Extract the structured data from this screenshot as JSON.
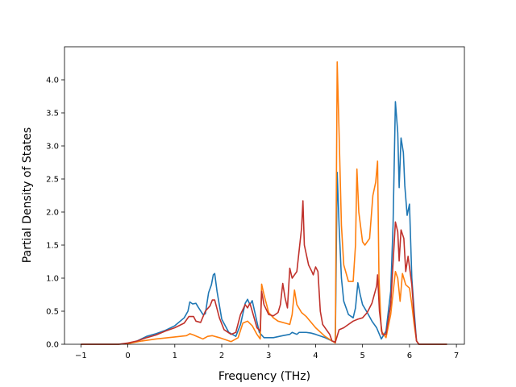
{
  "chart_data": {
    "type": "line",
    "title": "",
    "xlabel": "Frequency (THz)",
    "ylabel": "Partial Density of States",
    "xlim": [
      -1.35,
      7.17
    ],
    "ylim": [
      0.0,
      4.5
    ],
    "xticks": [
      -1,
      0,
      1,
      2,
      3,
      4,
      5,
      6,
      7
    ],
    "xtick_labels": [
      "−1",
      "0",
      "1",
      "2",
      "3",
      "4",
      "5",
      "6",
      "7"
    ],
    "yticks": [
      0.0,
      0.5,
      1.0,
      1.5,
      2.0,
      2.5,
      3.0,
      3.5,
      4.0
    ],
    "ytick_labels": [
      "0.0",
      "0.5",
      "1.0",
      "1.5",
      "2.0",
      "2.5",
      "3.0",
      "3.5",
      "4.0"
    ],
    "grid": false,
    "legend": "none",
    "series": [
      {
        "color": "#1f77b4",
        "points": [
          [
            -1.0,
            0.0
          ],
          [
            -0.2,
            0.0
          ],
          [
            0.0,
            0.01
          ],
          [
            0.2,
            0.05
          ],
          [
            0.4,
            0.12
          ],
          [
            0.6,
            0.16
          ],
          [
            0.8,
            0.21
          ],
          [
            1.0,
            0.28
          ],
          [
            1.2,
            0.4
          ],
          [
            1.28,
            0.5
          ],
          [
            1.32,
            0.64
          ],
          [
            1.38,
            0.61
          ],
          [
            1.45,
            0.62
          ],
          [
            1.5,
            0.56
          ],
          [
            1.6,
            0.45
          ],
          [
            1.65,
            0.46
          ],
          [
            1.72,
            0.78
          ],
          [
            1.78,
            0.9
          ],
          [
            1.82,
            1.05
          ],
          [
            1.85,
            1.07
          ],
          [
            1.9,
            0.8
          ],
          [
            2.0,
            0.38
          ],
          [
            2.15,
            0.18
          ],
          [
            2.3,
            0.12
          ],
          [
            2.4,
            0.3
          ],
          [
            2.5,
            0.62
          ],
          [
            2.55,
            0.68
          ],
          [
            2.6,
            0.6
          ],
          [
            2.65,
            0.66
          ],
          [
            2.7,
            0.5
          ],
          [
            2.8,
            0.18
          ],
          [
            2.9,
            0.1
          ],
          [
            3.1,
            0.1
          ],
          [
            3.3,
            0.13
          ],
          [
            3.45,
            0.15
          ],
          [
            3.5,
            0.18
          ],
          [
            3.6,
            0.15
          ],
          [
            3.65,
            0.18
          ],
          [
            3.8,
            0.18
          ],
          [
            3.9,
            0.17
          ],
          [
            4.0,
            0.15
          ],
          [
            4.2,
            0.1
          ],
          [
            4.35,
            0.05
          ],
          [
            4.42,
            0.03
          ],
          [
            4.46,
            2.6
          ],
          [
            4.5,
            1.8
          ],
          [
            4.55,
            1.0
          ],
          [
            4.6,
            0.65
          ],
          [
            4.7,
            0.45
          ],
          [
            4.8,
            0.4
          ],
          [
            4.85,
            0.55
          ],
          [
            4.9,
            0.93
          ],
          [
            4.95,
            0.75
          ],
          [
            5.0,
            0.6
          ],
          [
            5.1,
            0.48
          ],
          [
            5.2,
            0.35
          ],
          [
            5.3,
            0.25
          ],
          [
            5.4,
            0.08
          ],
          [
            5.5,
            0.2
          ],
          [
            5.6,
            0.8
          ],
          [
            5.65,
            1.8
          ],
          [
            5.7,
            3.67
          ],
          [
            5.75,
            3.2
          ],
          [
            5.78,
            2.37
          ],
          [
            5.82,
            3.12
          ],
          [
            5.87,
            2.9
          ],
          [
            5.9,
            2.4
          ],
          [
            5.95,
            1.95
          ],
          [
            6.0,
            2.12
          ],
          [
            6.05,
            1.0
          ],
          [
            6.1,
            0.5
          ],
          [
            6.15,
            0.05
          ],
          [
            6.2,
            0.0
          ],
          [
            6.8,
            0.0
          ]
        ]
      },
      {
        "color": "#ff7f0e",
        "points": [
          [
            -1.0,
            0.0
          ],
          [
            -0.2,
            0.0
          ],
          [
            0.0,
            0.01
          ],
          [
            0.3,
            0.05
          ],
          [
            0.6,
            0.08
          ],
          [
            1.0,
            0.11
          ],
          [
            1.25,
            0.13
          ],
          [
            1.32,
            0.16
          ],
          [
            1.4,
            0.14
          ],
          [
            1.5,
            0.11
          ],
          [
            1.6,
            0.08
          ],
          [
            1.7,
            0.12
          ],
          [
            1.8,
            0.13
          ],
          [
            1.95,
            0.1
          ],
          [
            2.2,
            0.04
          ],
          [
            2.35,
            0.1
          ],
          [
            2.45,
            0.32
          ],
          [
            2.55,
            0.35
          ],
          [
            2.65,
            0.28
          ],
          [
            2.75,
            0.15
          ],
          [
            2.82,
            0.08
          ],
          [
            2.85,
            0.91
          ],
          [
            2.9,
            0.75
          ],
          [
            3.0,
            0.48
          ],
          [
            3.1,
            0.4
          ],
          [
            3.2,
            0.35
          ],
          [
            3.35,
            0.32
          ],
          [
            3.45,
            0.3
          ],
          [
            3.5,
            0.45
          ],
          [
            3.55,
            0.82
          ],
          [
            3.6,
            0.6
          ],
          [
            3.7,
            0.48
          ],
          [
            3.8,
            0.42
          ],
          [
            4.0,
            0.25
          ],
          [
            4.2,
            0.12
          ],
          [
            4.35,
            0.05
          ],
          [
            4.42,
            0.02
          ],
          [
            4.46,
            4.27
          ],
          [
            4.5,
            3.2
          ],
          [
            4.55,
            1.8
          ],
          [
            4.6,
            1.2
          ],
          [
            4.7,
            0.95
          ],
          [
            4.8,
            0.95
          ],
          [
            4.85,
            1.5
          ],
          [
            4.88,
            2.65
          ],
          [
            4.92,
            2.0
          ],
          [
            5.0,
            1.55
          ],
          [
            5.05,
            1.5
          ],
          [
            5.15,
            1.6
          ],
          [
            5.22,
            2.25
          ],
          [
            5.28,
            2.45
          ],
          [
            5.32,
            2.77
          ],
          [
            5.35,
            1.0
          ],
          [
            5.4,
            0.2
          ],
          [
            5.5,
            0.1
          ],
          [
            5.6,
            0.45
          ],
          [
            5.7,
            1.1
          ],
          [
            5.75,
            1.0
          ],
          [
            5.8,
            0.65
          ],
          [
            5.85,
            1.07
          ],
          [
            5.92,
            0.9
          ],
          [
            6.0,
            0.85
          ],
          [
            6.05,
            0.6
          ],
          [
            6.1,
            0.3
          ],
          [
            6.15,
            0.05
          ],
          [
            6.2,
            0.0
          ],
          [
            6.8,
            0.0
          ]
        ]
      },
      {
        "color": "#c0312b",
        "points": [
          [
            -1.0,
            0.0
          ],
          [
            -0.2,
            0.0
          ],
          [
            0.0,
            0.02
          ],
          [
            0.2,
            0.05
          ],
          [
            0.4,
            0.1
          ],
          [
            0.6,
            0.14
          ],
          [
            0.8,
            0.2
          ],
          [
            1.0,
            0.25
          ],
          [
            1.2,
            0.32
          ],
          [
            1.3,
            0.42
          ],
          [
            1.4,
            0.42
          ],
          [
            1.45,
            0.35
          ],
          [
            1.55,
            0.33
          ],
          [
            1.65,
            0.5
          ],
          [
            1.75,
            0.58
          ],
          [
            1.8,
            0.67
          ],
          [
            1.85,
            0.67
          ],
          [
            1.95,
            0.4
          ],
          [
            2.05,
            0.22
          ],
          [
            2.2,
            0.15
          ],
          [
            2.3,
            0.18
          ],
          [
            2.4,
            0.45
          ],
          [
            2.5,
            0.6
          ],
          [
            2.55,
            0.55
          ],
          [
            2.6,
            0.62
          ],
          [
            2.65,
            0.5
          ],
          [
            2.75,
            0.25
          ],
          [
            2.82,
            0.2
          ],
          [
            2.85,
            0.8
          ],
          [
            2.9,
            0.6
          ],
          [
            3.0,
            0.45
          ],
          [
            3.1,
            0.43
          ],
          [
            3.2,
            0.48
          ],
          [
            3.25,
            0.6
          ],
          [
            3.3,
            0.92
          ],
          [
            3.35,
            0.7
          ],
          [
            3.4,
            0.55
          ],
          [
            3.45,
            1.15
          ],
          [
            3.5,
            1.0
          ],
          [
            3.6,
            1.1
          ],
          [
            3.7,
            1.75
          ],
          [
            3.73,
            2.17
          ],
          [
            3.76,
            1.5
          ],
          [
            3.85,
            1.2
          ],
          [
            3.92,
            1.1
          ],
          [
            3.95,
            1.05
          ],
          [
            4.0,
            1.17
          ],
          [
            4.05,
            1.1
          ],
          [
            4.1,
            0.5
          ],
          [
            4.15,
            0.3
          ],
          [
            4.3,
            0.15
          ],
          [
            4.35,
            0.05
          ],
          [
            4.42,
            0.03
          ],
          [
            4.5,
            0.22
          ],
          [
            4.6,
            0.25
          ],
          [
            4.7,
            0.3
          ],
          [
            4.8,
            0.35
          ],
          [
            4.9,
            0.38
          ],
          [
            5.0,
            0.4
          ],
          [
            5.1,
            0.48
          ],
          [
            5.2,
            0.62
          ],
          [
            5.3,
            0.88
          ],
          [
            5.32,
            1.05
          ],
          [
            5.36,
            0.5
          ],
          [
            5.42,
            0.15
          ],
          [
            5.5,
            0.15
          ],
          [
            5.6,
            0.6
          ],
          [
            5.7,
            1.85
          ],
          [
            5.75,
            1.7
          ],
          [
            5.78,
            1.26
          ],
          [
            5.82,
            1.73
          ],
          [
            5.88,
            1.6
          ],
          [
            5.92,
            1.1
          ],
          [
            5.97,
            1.33
          ],
          [
            6.05,
            0.9
          ],
          [
            6.1,
            0.4
          ],
          [
            6.15,
            0.05
          ],
          [
            6.2,
            0.0
          ],
          [
            6.8,
            0.0
          ]
        ]
      }
    ]
  }
}
